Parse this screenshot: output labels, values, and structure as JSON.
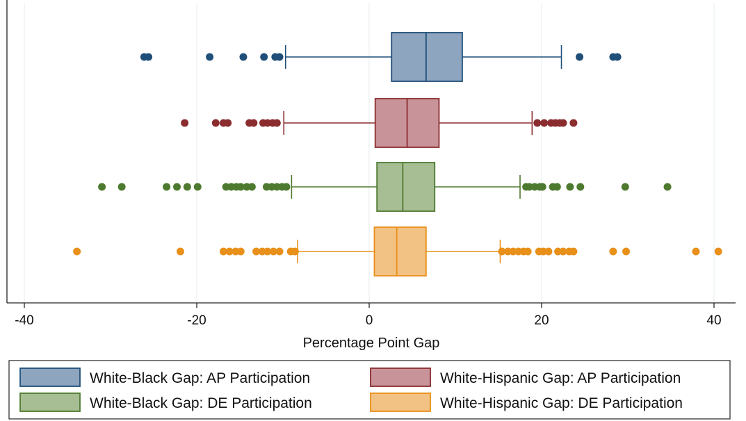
{
  "chart_data": {
    "type": "boxplot",
    "orientation": "horizontal",
    "xlabel": "Percentage Point Gap",
    "xlim": [
      -42,
      42
    ],
    "xticks": [
      -40,
      -20,
      0,
      20,
      40
    ],
    "xtick_labels": [
      "-40",
      "-20",
      "0",
      "20",
      "40"
    ],
    "grid": "vertical",
    "legend_position": "bottom",
    "series": [
      {
        "name": "White-Black Gap: AP Participation",
        "color": "#1f4e79",
        "fill": "#8ea5bf",
        "whisker_low": -9.7,
        "q1": 2.6,
        "median": 6.6,
        "q3": 10.8,
        "whisker_high": 22.3,
        "outliers": [
          -26.1,
          -25.6,
          -18.5,
          -14.6,
          -12.2,
          -10.9,
          -10.4,
          24.4,
          28.3,
          28.8
        ]
      },
      {
        "name": "White-Hispanic Gap: AP Participation",
        "color": "#8b2c2f",
        "fill": "#c8949a",
        "whisker_low": -9.9,
        "q1": 0.7,
        "median": 4.4,
        "q3": 8.1,
        "whisker_high": 18.9,
        "outliers": [
          -21.4,
          -17.8,
          -16.9,
          -16.4,
          -13.9,
          -13.4,
          -12.3,
          -11.8,
          -11.2,
          -10.7,
          19.5,
          20.3,
          21.1,
          21.6,
          22.1,
          22.5,
          23.7
        ]
      },
      {
        "name": "White-Black Gap: DE Participation",
        "color": "#4e7a2f",
        "fill": "#a7bd94",
        "whisker_low": -9.0,
        "q1": 0.9,
        "median": 3.9,
        "q3": 7.6,
        "whisker_high": 17.5,
        "outliers": [
          -31.0,
          -28.7,
          -23.5,
          -22.3,
          -21.1,
          -19.9,
          -16.6,
          -16.0,
          -15.4,
          -14.9,
          -14.2,
          -13.6,
          -11.9,
          -11.3,
          -10.7,
          -10.1,
          -9.6,
          18.2,
          18.6,
          19.2,
          19.8,
          20.1,
          21.3,
          21.8,
          23.3,
          24.5,
          29.7,
          34.6
        ]
      },
      {
        "name": "White-Hispanic Gap: DE Participation",
        "color": "#e8901a",
        "fill": "#f2c184",
        "whisker_low": -8.3,
        "q1": 0.6,
        "median": 3.2,
        "q3": 6.6,
        "whisker_high": 15.2,
        "outliers": [
          -33.9,
          -21.9,
          -16.9,
          -16.2,
          -15.5,
          -14.9,
          -13.1,
          -12.4,
          -11.8,
          -11.1,
          -10.4,
          -9.1,
          -8.6,
          15.4,
          16.1,
          16.7,
          17.3,
          17.9,
          18.4,
          19.7,
          20.2,
          20.8,
          21.9,
          22.5,
          23.2,
          23.7,
          28.3,
          29.8,
          37.9,
          40.5
        ]
      }
    ]
  }
}
